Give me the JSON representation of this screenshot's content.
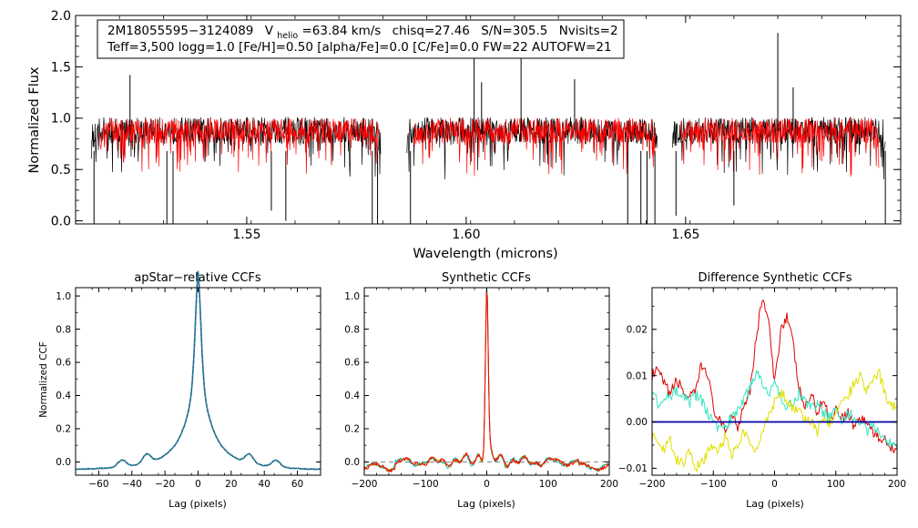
{
  "colors": {
    "background": "#ffffff",
    "axis": "#000000",
    "observed": "#000000",
    "model": "#ff0000",
    "ccf_main": "#1e8fa0",
    "ccf_alt": "#2a4f7f",
    "ccf_synth_a": "#ff0000",
    "ccf_synth_b": "#8a8a00",
    "ccf_synth_c": "#00c8c8",
    "diff_red": "#e00000",
    "diff_cyan": "#33e6c0",
    "diff_yellow": "#e0e000",
    "diff_blue": "#0000aa",
    "dashed": "#808080"
  },
  "chart_data": [
    {
      "id": "spectrum",
      "type": "line",
      "title": "",
      "xlabel": "Wavelength (microns)",
      "ylabel": "Normalized Flux",
      "xlim": [
        1.511,
        1.699
      ],
      "ylim": [
        -0.03,
        2.0
      ],
      "xticks": [
        1.55,
        1.6,
        1.65
      ],
      "xtick_labels": [
        "1.55",
        "1.60",
        "1.65"
      ],
      "yticks": [
        0.0,
        0.5,
        1.0,
        1.5,
        2.0
      ],
      "ytick_labels": [
        "0.0",
        "0.5",
        "1.0",
        "1.5",
        "2.0"
      ],
      "info": {
        "star_id": "2M18055595−3124089",
        "v_symbol": "V",
        "v_subscript": "helio",
        "v_value": "=63.84 km/s",
        "chisq": "chisq=27.46",
        "snr": "S/N=305.5",
        "nvisits": "Nvisits=2",
        "params": "Teff=3,500 logg=1.0 [Fe/H]=0.50 [alpha/Fe]=0.0 [C/Fe]=0.0 FW=22 AUTOFW=21"
      },
      "segments": [
        [
          1.5145,
          1.5805
        ],
        [
          1.5865,
          1.6435
        ],
        [
          1.647,
          1.6955
        ]
      ],
      "model_segments": [
        [
          1.5165,
          1.58
        ],
        [
          1.588,
          1.643
        ],
        [
          1.649,
          1.694
        ]
      ],
      "continuum": 0.88,
      "emission_spikes": [
        {
          "x": 1.5234,
          "y": 1.42
        },
        {
          "x": 1.6018,
          "y": 1.62
        },
        {
          "x": 1.6125,
          "y": 1.65
        },
        {
          "x": 1.6035,
          "y": 1.35
        },
        {
          "x": 1.6247,
          "y": 1.38
        },
        {
          "x": 1.671,
          "y": 1.83
        },
        {
          "x": 1.6745,
          "y": 1.3
        }
      ],
      "absorption_dips": [
        {
          "x": 1.5152,
          "y": -0.03
        },
        {
          "x": 1.5318,
          "y": -0.03
        },
        {
          "x": 1.5332,
          "y": -0.03
        },
        {
          "x": 1.5556,
          "y": 0.1
        },
        {
          "x": 1.5589,
          "y": 0.0
        },
        {
          "x": 1.5786,
          "y": -0.03
        },
        {
          "x": 1.5798,
          "y": -0.03
        },
        {
          "x": 1.5873,
          "y": -0.03
        },
        {
          "x": 1.6368,
          "y": -0.03
        },
        {
          "x": 1.6398,
          "y": -0.03
        },
        {
          "x": 1.6412,
          "y": -0.03
        },
        {
          "x": 1.643,
          "y": -0.03
        },
        {
          "x": 1.6478,
          "y": 0.05
        },
        {
          "x": 1.661,
          "y": 0.15
        },
        {
          "x": 1.6955,
          "y": -0.03
        }
      ]
    },
    {
      "id": "apstar_ccf",
      "type": "line",
      "title": "apStar−relative CCFs",
      "xlabel": "Lag (pixels)",
      "ylabel": "Normalized CCF",
      "xlim": [
        -74,
        74
      ],
      "ylim": [
        -0.08,
        1.05
      ],
      "xticks": [
        -60,
        -40,
        -20,
        0,
        20,
        40,
        60
      ],
      "xtick_labels": [
        "−60",
        "−40",
        "−20",
        "0",
        "20",
        "40",
        "60"
      ],
      "yticks": [
        0.0,
        0.2,
        0.4,
        0.6,
        0.8,
        1.0
      ],
      "ytick_labels": [
        "0.0",
        "0.2",
        "0.4",
        "0.6",
        "0.8",
        "1.0"
      ],
      "peak": {
        "x": 0,
        "y": 0.99
      },
      "baseline": -0.05,
      "bumps": [
        {
          "x": -46,
          "y": 0.02
        },
        {
          "x": -31,
          "y": 0.04
        },
        {
          "x": 31,
          "y": 0.04
        },
        {
          "x": 47,
          "y": 0.02
        }
      ]
    },
    {
      "id": "synthetic_ccf",
      "type": "line",
      "title": "Synthetic CCFs",
      "xlabel": "Lag (pixels)",
      "ylabel": "",
      "xlim": [
        -200,
        200
      ],
      "ylim": [
        -0.08,
        1.05
      ],
      "xticks": [
        -200,
        -100,
        0,
        100,
        200
      ],
      "xtick_labels": [
        "−200",
        "−100",
        "0",
        "100",
        "200"
      ],
      "yticks": [
        0.0,
        0.2,
        0.4,
        0.6,
        0.8,
        1.0
      ],
      "ytick_labels": [
        "0.0",
        "0.2",
        "0.4",
        "0.6",
        "0.8",
        "1.0"
      ],
      "peak": {
        "x": 0,
        "y": 1.0
      },
      "dashed_level": 0.0
    },
    {
      "id": "difference_ccf",
      "type": "line",
      "title": "Difference Synthetic CCFs",
      "xlabel": "Lag (pixels)",
      "ylabel": "",
      "xlim": [
        -200,
        200
      ],
      "ylim": [
        -0.0115,
        0.029
      ],
      "xticks": [
        -200,
        -100,
        0,
        100,
        200
      ],
      "xtick_labels": [
        "−200",
        "−100",
        "0",
        "100",
        "200"
      ],
      "yticks": [
        -0.01,
        0.0,
        0.01,
        0.02
      ],
      "ytick_labels": [
        "−0.01",
        "0.00",
        "0.01",
        "0.02"
      ],
      "series": [
        {
          "name": "red",
          "color_key": "diff_red",
          "x": [
            -200,
            -190,
            -180,
            -170,
            -160,
            -150,
            -140,
            -130,
            -120,
            -110,
            -100,
            -90,
            -80,
            -70,
            -60,
            -50,
            -40,
            -30,
            -20,
            -10,
            0,
            10,
            20,
            30,
            40,
            50,
            60,
            70,
            80,
            90,
            100,
            110,
            120,
            130,
            140,
            150,
            160,
            170,
            180,
            190,
            200
          ],
          "y": [
            0.01,
            0.011,
            0.008,
            0.006,
            0.009,
            0.007,
            0.005,
            0.006,
            0.012,
            0.011,
            0.003,
            0.0,
            -0.002,
            0.002,
            -0.001,
            0.004,
            0.007,
            0.018,
            0.027,
            0.022,
            0.008,
            0.02,
            0.023,
            0.017,
            0.007,
            0.003,
            0.006,
            0.002,
            0.005,
            0.0,
            0.003,
            0.001,
            0.002,
            -0.001,
            0.001,
            0.0,
            -0.002,
            -0.004,
            -0.003,
            -0.006,
            -0.005
          ]
        },
        {
          "name": "cyan",
          "color_key": "diff_cyan",
          "x": [
            -200,
            -190,
            -180,
            -170,
            -160,
            -150,
            -140,
            -130,
            -120,
            -110,
            -100,
            -90,
            -80,
            -70,
            -60,
            -50,
            -40,
            -30,
            -20,
            -10,
            0,
            10,
            20,
            30,
            40,
            50,
            60,
            70,
            80,
            90,
            100,
            110,
            120,
            130,
            140,
            150,
            160,
            170,
            180,
            190,
            200
          ],
          "y": [
            0.007,
            0.004,
            0.006,
            0.005,
            0.007,
            0.006,
            0.004,
            0.006,
            0.005,
            0.002,
            0.0,
            -0.002,
            -0.001,
            0.001,
            0.003,
            0.005,
            0.007,
            0.011,
            0.009,
            0.006,
            0.008,
            0.005,
            0.003,
            0.004,
            0.006,
            0.005,
            0.003,
            0.004,
            0.002,
            0.001,
            0.003,
            0.0,
            0.002,
            0.001,
            0.0,
            -0.002,
            -0.001,
            -0.002,
            -0.004,
            -0.005,
            -0.006
          ]
        },
        {
          "name": "yellow",
          "color_key": "diff_yellow",
          "x": [
            -200,
            -190,
            -180,
            -170,
            -160,
            -150,
            -140,
            -130,
            -120,
            -110,
            -100,
            -90,
            -80,
            -70,
            -60,
            -50,
            -40,
            -30,
            -20,
            -10,
            0,
            10,
            20,
            30,
            40,
            50,
            60,
            70,
            80,
            90,
            100,
            110,
            120,
            130,
            140,
            150,
            160,
            170,
            180,
            190,
            200
          ],
          "y": [
            -0.003,
            -0.005,
            -0.006,
            -0.004,
            -0.008,
            -0.009,
            -0.006,
            -0.01,
            -0.009,
            -0.007,
            -0.005,
            -0.006,
            -0.003,
            -0.007,
            -0.005,
            -0.002,
            -0.004,
            -0.006,
            -0.003,
            0.002,
            0.004,
            0.006,
            0.005,
            0.003,
            0.002,
            0.001,
            0.0,
            -0.002,
            0.001,
            0.0,
            0.002,
            0.004,
            0.006,
            0.008,
            0.01,
            0.007,
            0.009,
            0.011,
            0.006,
            0.004,
            0.003
          ]
        },
        {
          "name": "blue",
          "color_key": "diff_blue",
          "x": [
            -200,
            200
          ],
          "y": [
            0.0,
            0.0
          ]
        }
      ]
    }
  ]
}
